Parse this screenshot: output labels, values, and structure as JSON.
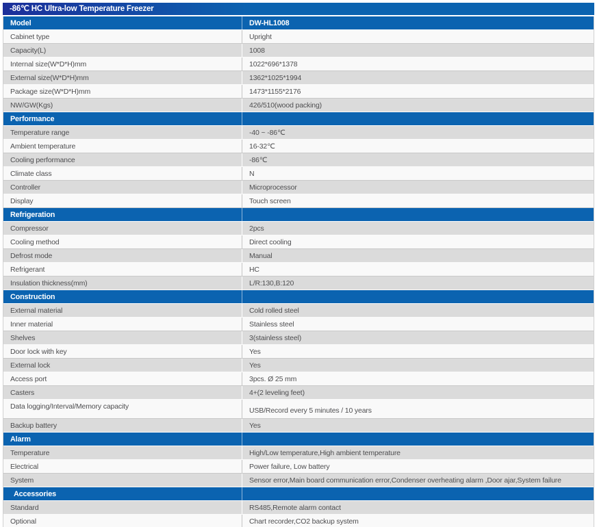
{
  "title": "-86℃ HC Ultra-low Temperature Freezer",
  "colors": {
    "title_gradient_start": "#1c2f9a",
    "header_blue": "#0b63b0",
    "row_gray": "#dbdbdb",
    "row_white": "#f9f9f9",
    "cell_text": "#4e4e50",
    "header_text": "#ffffff"
  },
  "table": {
    "columns": [
      "label",
      "value"
    ],
    "rows": [
      {
        "kind": "header",
        "label": "Model",
        "value": "DW-HL1008"
      },
      {
        "kind": "data",
        "shade": "white",
        "label": "Cabinet type",
        "value": "Upright"
      },
      {
        "kind": "data",
        "shade": "gray",
        "label": "Capacity(L)",
        "value": "1008"
      },
      {
        "kind": "data",
        "shade": "white",
        "label": "Internal size(W*D*H)mm",
        "value": "1022*696*1378"
      },
      {
        "kind": "data",
        "shade": "gray",
        "label": "External size(W*D*H)mm",
        "value": "1362*1025*1994"
      },
      {
        "kind": "data",
        "shade": "white",
        "label": "Package size(W*D*H)mm",
        "value": "1473*1155*2176"
      },
      {
        "kind": "data",
        "shade": "gray",
        "label": "NW/GW(Kgs)",
        "value": "426/510(wood packing)"
      },
      {
        "kind": "header",
        "label": "Performance",
        "value": ""
      },
      {
        "kind": "data",
        "shade": "gray",
        "label": "Temperature range",
        "value": "-40 ~ -86℃"
      },
      {
        "kind": "data",
        "shade": "white",
        "label": "Ambient temperature",
        "value": "16-32℃"
      },
      {
        "kind": "data",
        "shade": "gray",
        "label": "Cooling performance",
        "value": "-86℃"
      },
      {
        "kind": "data",
        "shade": "white",
        "label": "Climate class",
        "value": "N"
      },
      {
        "kind": "data",
        "shade": "gray",
        "label": "Controller",
        "value": "Microprocessor"
      },
      {
        "kind": "data",
        "shade": "white",
        "label": "Display",
        "value": "Touch screen"
      },
      {
        "kind": "header",
        "label": "Refrigeration",
        "value": ""
      },
      {
        "kind": "data",
        "shade": "gray",
        "label": "Compressor",
        "value": "2pcs"
      },
      {
        "kind": "data",
        "shade": "white",
        "label": "Cooling method",
        "value": "Direct cooling"
      },
      {
        "kind": "data",
        "shade": "gray",
        "label": "Defrost mode",
        "value": "Manual"
      },
      {
        "kind": "data",
        "shade": "white",
        "label": "Refrigerant",
        "value": "HC"
      },
      {
        "kind": "data",
        "shade": "gray",
        "label": "Insulation thickness(mm)",
        "value": "L/R:130,B:120"
      },
      {
        "kind": "header",
        "label": "Construction",
        "value": ""
      },
      {
        "kind": "data",
        "shade": "gray",
        "label": "External material",
        "value": "Cold  rolled steel"
      },
      {
        "kind": "data",
        "shade": "white",
        "label": "Inner material",
        "value": "Stainless steel"
      },
      {
        "kind": "data",
        "shade": "gray",
        "label": "Shelves",
        "value": "3(stainless steel)"
      },
      {
        "kind": "data",
        "shade": "white",
        "label": "Door lock with key",
        "value": "Yes"
      },
      {
        "kind": "data",
        "shade": "gray",
        "label": "External lock",
        "value": "Yes"
      },
      {
        "kind": "data",
        "shade": "white",
        "label": "Access port",
        "value": "3pcs. Ø 25 mm"
      },
      {
        "kind": "data",
        "shade": "gray",
        "label": "Casters",
        "value": "4+(2 leveling feet)"
      },
      {
        "kind": "data",
        "shade": "white",
        "label": "Data logging/Interval/Memory capacity",
        "value": "USB/Record every 5 minutes / 10 years",
        "tall": true
      },
      {
        "kind": "data",
        "shade": "gray",
        "label": "Backup battery",
        "value": "Yes"
      },
      {
        "kind": "header",
        "label": "Alarm",
        "value": ""
      },
      {
        "kind": "data",
        "shade": "gray",
        "label": "Temperature",
        "value": "High/Low temperature,High ambient temperature"
      },
      {
        "kind": "data",
        "shade": "white",
        "label": "Electrical",
        "value": "Power failure, Low battery"
      },
      {
        "kind": "data",
        "shade": "gray",
        "label": "System",
        "value": "Sensor error,Main board communication error,Condenser overheating alarm ,Door ajar,System failure"
      },
      {
        "kind": "header",
        "label": "Accessories",
        "value": "",
        "indent": true
      },
      {
        "kind": "data",
        "shade": "gray",
        "label": "Standard",
        "value": "RS485,Remote alarm contact"
      },
      {
        "kind": "data",
        "shade": "white",
        "label": "Optional",
        "value": "Chart recorder,CO2 backup system"
      }
    ]
  }
}
